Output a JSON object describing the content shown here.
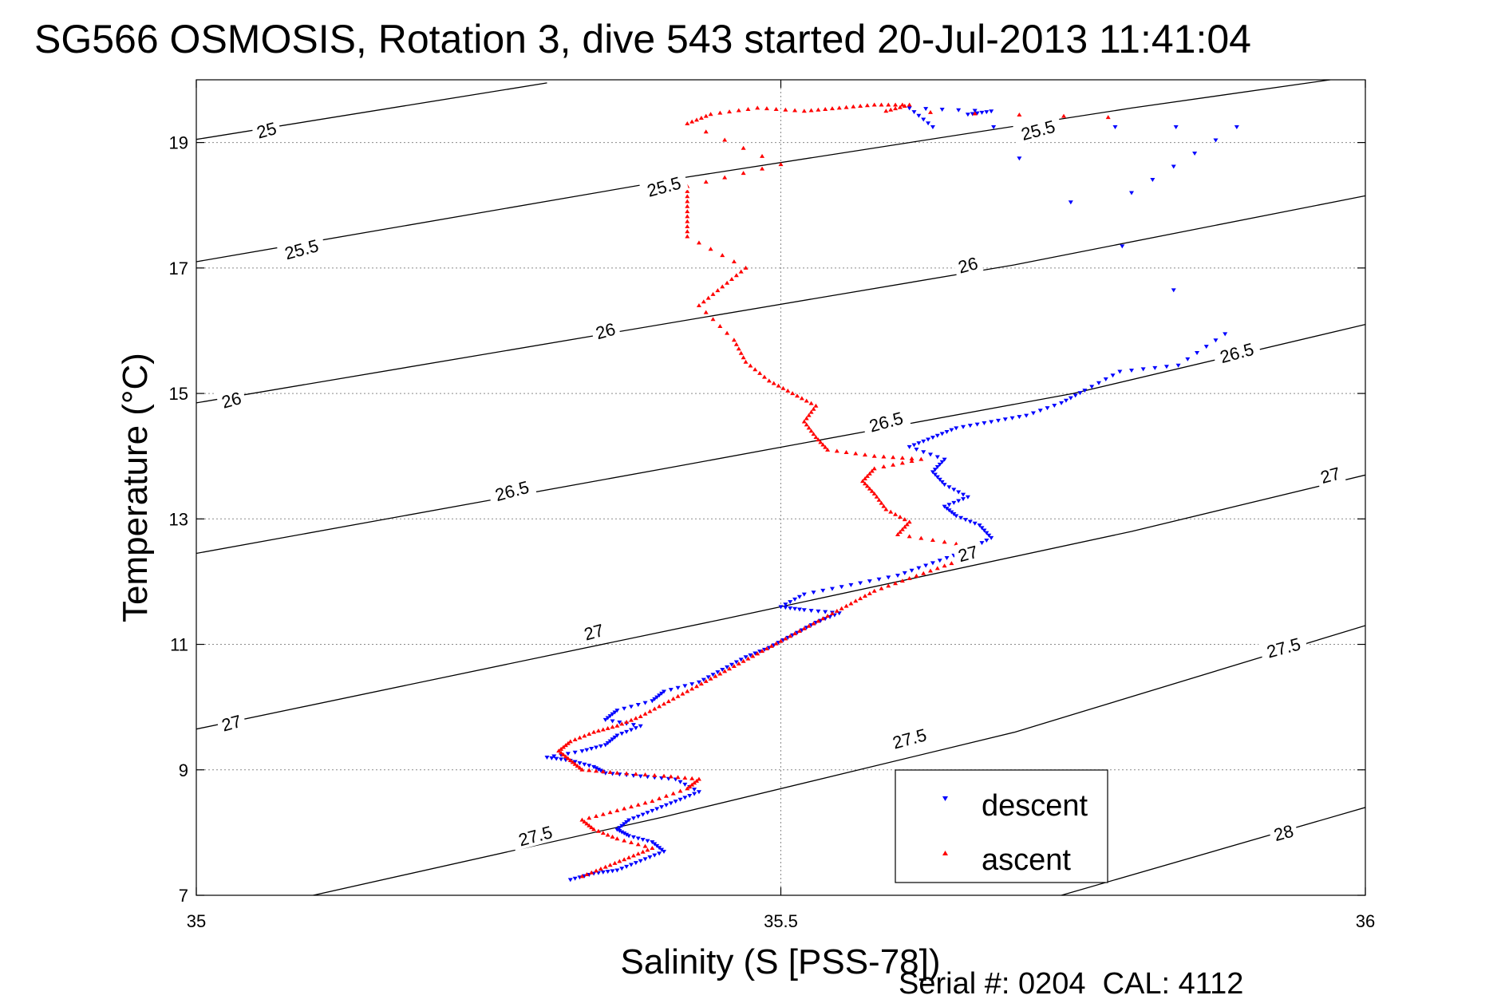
{
  "chart_data": {
    "type": "scatter",
    "title": "SG566 OSMOSIS, Rotation 3, dive 543 started 20-Jul-2013 11:41:04",
    "xlabel": "Salinity (S [PSS-78])",
    "ylabel": "Temperature (°C)",
    "xlim": [
      35,
      36
    ],
    "ylim": [
      7,
      20
    ],
    "x_ticks": [
      35,
      35.5,
      36
    ],
    "x_tick_labels": [
      "35",
      "35.5",
      "36"
    ],
    "y_ticks": [
      7,
      9,
      11,
      13,
      15,
      17,
      19
    ],
    "y_tick_labels": [
      "7",
      "9",
      "11",
      "13",
      "15",
      "17",
      "19"
    ],
    "grid": true,
    "legend_position": "bottom-right",
    "footer": "Serial #: 0204  CAL: 4112",
    "contours": [
      {
        "level": "25",
        "points": [
          [
            35.0,
            19.05
          ],
          [
            35.3,
            19.95
          ]
        ],
        "labels": [
          [
            35.06,
            19.2
          ]
        ]
      },
      {
        "level": "25.5",
        "points": [
          [
            35.0,
            17.1
          ],
          [
            35.42,
            18.45
          ],
          [
            35.8,
            19.55
          ],
          [
            35.97,
            20.0
          ]
        ],
        "labels": [
          [
            35.09,
            17.3
          ],
          [
            35.4,
            18.3
          ],
          [
            35.72,
            19.2
          ]
        ]
      },
      {
        "level": "26",
        "points": [
          [
            35.0,
            14.85
          ],
          [
            35.35,
            15.95
          ],
          [
            35.7,
            17.05
          ],
          [
            36.0,
            18.15
          ]
        ],
        "labels": [
          [
            35.03,
            14.9
          ],
          [
            35.35,
            16.0
          ],
          [
            35.66,
            17.05
          ]
        ]
      },
      {
        "level": "26.5",
        "points": [
          [
            35.0,
            12.45
          ],
          [
            35.4,
            13.8
          ],
          [
            35.75,
            15.0
          ],
          [
            36.0,
            16.1
          ]
        ],
        "labels": [
          [
            35.27,
            13.45
          ],
          [
            35.59,
            14.55
          ],
          [
            35.89,
            15.65
          ]
        ]
      },
      {
        "level": "27",
        "points": [
          [
            35.0,
            9.65
          ],
          [
            35.45,
            11.4
          ],
          [
            35.8,
            12.8
          ],
          [
            36.0,
            13.7
          ]
        ],
        "labels": [
          [
            35.03,
            9.75
          ],
          [
            35.34,
            11.2
          ],
          [
            35.66,
            12.45
          ],
          [
            35.97,
            13.7
          ]
        ]
      },
      {
        "level": "27.5",
        "points": [
          [
            35.1,
            7.0
          ],
          [
            35.4,
            8.25
          ],
          [
            35.7,
            9.6
          ],
          [
            36.0,
            11.3
          ]
        ],
        "labels": [
          [
            35.29,
            7.95
          ],
          [
            35.61,
            9.5
          ],
          [
            35.93,
            10.95
          ]
        ]
      },
      {
        "level": "28",
        "points": [
          [
            35.74,
            7.0
          ],
          [
            36.0,
            8.4
          ]
        ],
        "labels": [
          [
            35.93,
            8.0
          ]
        ]
      }
    ],
    "series": [
      {
        "name": "descent",
        "color": "#0000ff",
        "points": [
          [
            35.32,
            7.25
          ],
          [
            35.34,
            7.35
          ],
          [
            35.36,
            7.4
          ],
          [
            35.38,
            7.55
          ],
          [
            35.4,
            7.7
          ],
          [
            35.39,
            7.85
          ],
          [
            35.37,
            7.95
          ],
          [
            35.36,
            8.05
          ],
          [
            35.37,
            8.2
          ],
          [
            35.39,
            8.35
          ],
          [
            35.41,
            8.5
          ],
          [
            35.43,
            8.65
          ],
          [
            35.41,
            8.85
          ],
          [
            35.38,
            8.9
          ],
          [
            35.35,
            8.95
          ],
          [
            35.34,
            9.05
          ],
          [
            35.32,
            9.15
          ],
          [
            35.3,
            9.2
          ],
          [
            35.33,
            9.3
          ],
          [
            35.35,
            9.4
          ],
          [
            35.36,
            9.55
          ],
          [
            35.38,
            9.7
          ],
          [
            35.35,
            9.8
          ],
          [
            35.36,
            9.95
          ],
          [
            35.39,
            10.1
          ],
          [
            35.4,
            10.25
          ],
          [
            35.43,
            10.4
          ],
          [
            35.45,
            10.6
          ],
          [
            35.47,
            10.8
          ],
          [
            35.49,
            10.95
          ],
          [
            35.51,
            11.15
          ],
          [
            35.53,
            11.35
          ],
          [
            35.55,
            11.5
          ],
          [
            35.52,
            11.55
          ],
          [
            35.5,
            11.6
          ],
          [
            35.52,
            11.8
          ],
          [
            35.56,
            11.95
          ],
          [
            35.6,
            12.1
          ],
          [
            35.63,
            12.3
          ],
          [
            35.66,
            12.5
          ],
          [
            35.68,
            12.7
          ],
          [
            35.67,
            12.9
          ],
          [
            35.65,
            13.05
          ],
          [
            35.64,
            13.2
          ],
          [
            35.66,
            13.35
          ],
          [
            35.64,
            13.55
          ],
          [
            35.63,
            13.75
          ],
          [
            35.64,
            13.95
          ],
          [
            35.61,
            14.15
          ],
          [
            35.63,
            14.3
          ],
          [
            35.65,
            14.45
          ],
          [
            35.68,
            14.55
          ],
          [
            35.71,
            14.65
          ],
          [
            35.74,
            14.85
          ],
          [
            35.76,
            15.05
          ],
          [
            35.79,
            15.35
          ],
          [
            35.84,
            15.45
          ],
          [
            35.88,
            15.95
          ],
          [
            35.66,
            19.45
          ],
          [
            35.68,
            19.5
          ],
          [
            35.61,
            19.55
          ],
          [
            35.63,
            19.25
          ],
          [
            35.89,
            19.25
          ],
          [
            35.8,
            18.2
          ]
        ]
      },
      {
        "name": "ascent",
        "color": "#ff0000",
        "points": [
          [
            35.33,
            7.3
          ],
          [
            35.35,
            7.45
          ],
          [
            35.37,
            7.6
          ],
          [
            35.39,
            7.75
          ],
          [
            35.36,
            7.9
          ],
          [
            35.34,
            8.05
          ],
          [
            35.33,
            8.2
          ],
          [
            35.36,
            8.35
          ],
          [
            35.39,
            8.5
          ],
          [
            35.42,
            8.7
          ],
          [
            35.43,
            8.85
          ],
          [
            35.4,
            8.9
          ],
          [
            35.36,
            8.95
          ],
          [
            35.33,
            9.0
          ],
          [
            35.32,
            9.15
          ],
          [
            35.31,
            9.3
          ],
          [
            35.32,
            9.45
          ],
          [
            35.34,
            9.6
          ],
          [
            35.36,
            9.7
          ],
          [
            35.38,
            9.85
          ],
          [
            35.4,
            10.05
          ],
          [
            35.42,
            10.25
          ],
          [
            35.44,
            10.45
          ],
          [
            35.46,
            10.65
          ],
          [
            35.48,
            10.85
          ],
          [
            35.5,
            11.05
          ],
          [
            35.52,
            11.25
          ],
          [
            35.54,
            11.45
          ],
          [
            35.56,
            11.65
          ],
          [
            35.58,
            11.85
          ],
          [
            35.61,
            12.05
          ],
          [
            35.64,
            12.25
          ],
          [
            35.67,
            12.45
          ],
          [
            35.65,
            12.6
          ],
          [
            35.6,
            12.75
          ],
          [
            35.61,
            12.95
          ],
          [
            35.59,
            13.15
          ],
          [
            35.58,
            13.4
          ],
          [
            35.57,
            13.6
          ],
          [
            35.58,
            13.8
          ],
          [
            35.62,
            13.95
          ],
          [
            35.58,
            14.0
          ],
          [
            35.54,
            14.1
          ],
          [
            35.53,
            14.3
          ],
          [
            35.52,
            14.55
          ],
          [
            35.53,
            14.8
          ],
          [
            35.51,
            15.0
          ],
          [
            35.49,
            15.2
          ],
          [
            35.47,
            15.5
          ],
          [
            35.46,
            15.85
          ],
          [
            35.43,
            16.4
          ],
          [
            35.45,
            16.7
          ],
          [
            35.47,
            17.0
          ],
          [
            35.42,
            17.5
          ],
          [
            35.42,
            17.9
          ],
          [
            35.42,
            18.3
          ],
          [
            35.5,
            18.65
          ],
          [
            35.42,
            19.3
          ],
          [
            35.44,
            19.45
          ],
          [
            35.48,
            19.55
          ],
          [
            35.52,
            19.5
          ],
          [
            35.55,
            19.55
          ],
          [
            35.58,
            19.6
          ],
          [
            35.61,
            19.6
          ],
          [
            35.59,
            19.5
          ],
          [
            35.78,
            19.4
          ]
        ]
      }
    ]
  }
}
